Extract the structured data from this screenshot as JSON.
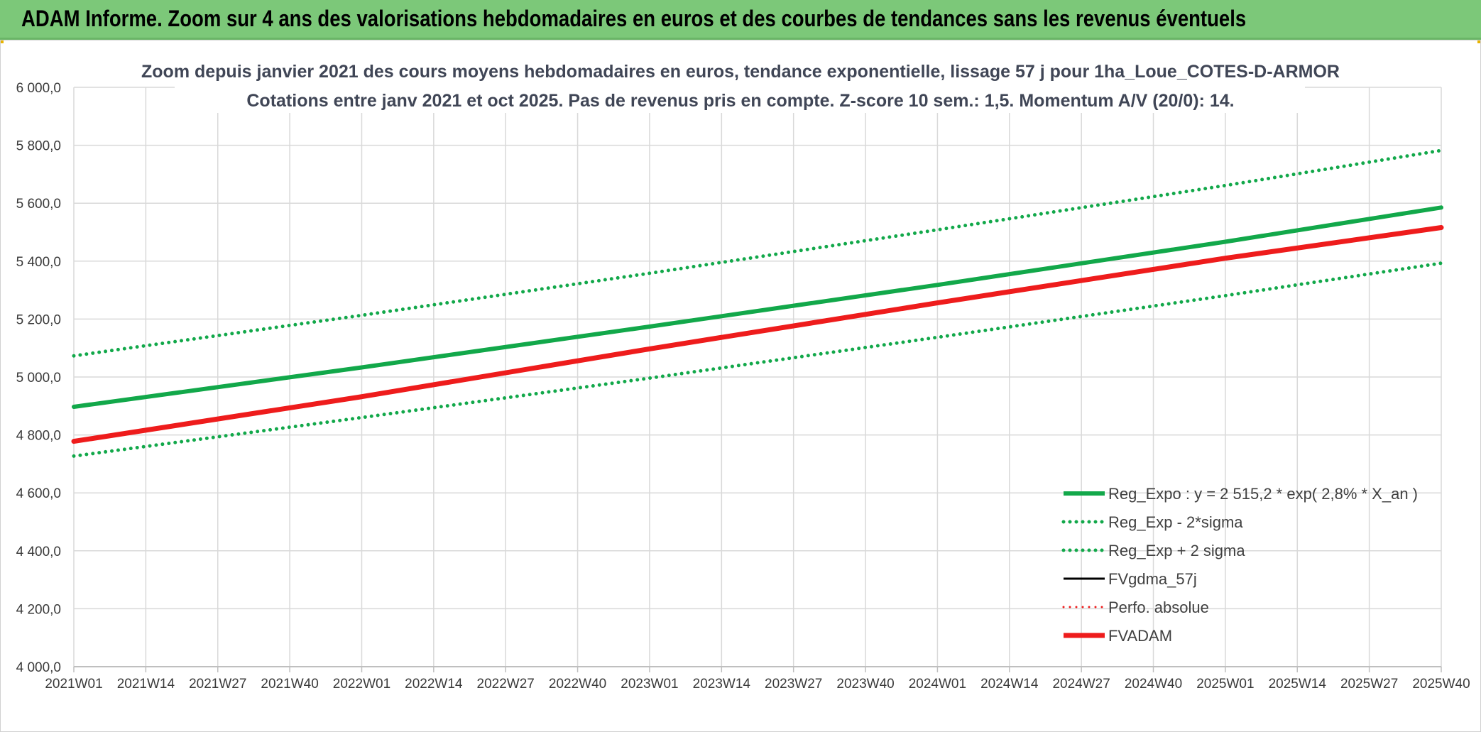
{
  "banner": {
    "title": "ADAM Informe. Zoom sur 4 ans des valorisations hebdomadaires en euros et des courbes de tendances sans les revenus éventuels"
  },
  "colors": {
    "banner_bg": "#7cc879",
    "green": "#12a84a",
    "red": "#ee1c1c",
    "black": "#000000",
    "grid": "#d9d9d9"
  },
  "chart_data": {
    "type": "line",
    "title_lines": [
      "Zoom depuis janvier 2021 des cours moyens hebdomadaires en euros, tendance exponentielle, lissage 57 j pour 1ha_Loue_COTES-D-ARMOR",
      "Cotations entre janv 2021 et oct 2025. Pas de revenus pris en compte. Z-score 10 sem.: 1,5. Momentum A/V (20/0): 14."
    ],
    "x_tick_labels": [
      "2021W01",
      "2021W14",
      "2021W27",
      "2021W40",
      "2022W01",
      "2022W14",
      "2022W27",
      "2022W40",
      "2023W01",
      "2023W14",
      "2023W27",
      "2023W40",
      "2024W01",
      "2024W14",
      "2024W27",
      "2024W40",
      "2025W01",
      "2025W14",
      "2025W27",
      "2025W40"
    ],
    "y_tick_labels": [
      "4 000,0",
      "4 200,0",
      "4 400,0",
      "4 600,0",
      "4 800,0",
      "5 000,0",
      "5 200,0",
      "5 400,0",
      "5 600,0",
      "5 800,0",
      "6 000,0"
    ],
    "ylim": [
      4000,
      6000
    ],
    "grid": true,
    "legend_position": "bottom-right",
    "series": [
      {
        "name": "Reg_Expo : y = 2 515,2 * exp( 2,8% *  X_an )",
        "color": "#12a84a",
        "style": "solid",
        "width": 6,
        "x": [
          "2021W01",
          "2022W01",
          "2023W01",
          "2024W01",
          "2025W01",
          "2025W40"
        ],
        "values": [
          4897,
          5033,
          5174,
          5318,
          5467,
          5585
        ]
      },
      {
        "name": "Reg_Exp - 2*sigma",
        "color": "#12a84a",
        "style": "dotted",
        "width": 5,
        "x": [
          "2021W01",
          "2022W01",
          "2023W01",
          "2024W01",
          "2025W01",
          "2025W40"
        ],
        "values": [
          4727,
          4860,
          4996,
          5137,
          5281,
          5393
        ]
      },
      {
        "name": "Reg_Exp + 2 sigma",
        "color": "#12a84a",
        "style": "dotted",
        "width": 5,
        "x": [
          "2021W01",
          "2022W01",
          "2023W01",
          "2024W01",
          "2025W01",
          "2025W40"
        ],
        "values": [
          5073,
          5213,
          5358,
          5508,
          5661,
          5782
        ]
      },
      {
        "name": "FVgdma_57j",
        "color": "#000000",
        "style": "solid",
        "width": 3,
        "x": [
          "2021W01",
          "2022W01",
          "2023W01",
          "2024W01",
          "2025W01",
          "2025W40"
        ],
        "values": [
          4778,
          4932,
          5097,
          5256,
          5410,
          5516
        ]
      },
      {
        "name": "Perfo. absolue",
        "color": "#ee1c1c",
        "style": "dotted",
        "width": 3,
        "x": [],
        "values": []
      },
      {
        "name": "FVADAM",
        "color": "#ee1c1c",
        "style": "solid",
        "width": 7,
        "x": [
          "2021W01",
          "2022W01",
          "2023W01",
          "2024W01",
          "2025W01",
          "2025W40"
        ],
        "values": [
          4778,
          4932,
          5097,
          5256,
          5410,
          5516
        ]
      }
    ]
  }
}
